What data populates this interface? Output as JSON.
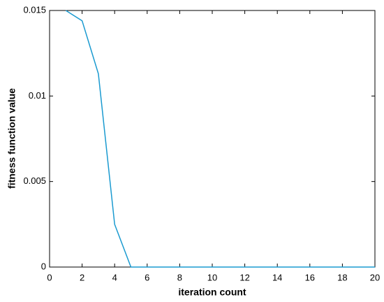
{
  "chart_data": {
    "type": "line",
    "x_label": "iteration count",
    "y_label": "fitness function value",
    "x": [
      1,
      2,
      3,
      4,
      5,
      6,
      7,
      8,
      9,
      10,
      11,
      12,
      13,
      14,
      15,
      16,
      17,
      18,
      19,
      20
    ],
    "values": [
      0.015,
      0.0144,
      0.0113,
      0.0025,
      0,
      0,
      0,
      0,
      0,
      0,
      0,
      0,
      0,
      0,
      0,
      0,
      0,
      0,
      0,
      0
    ],
    "color": "#1a9ad0",
    "xlim": [
      0,
      20
    ],
    "xticks": [
      0,
      2,
      4,
      6,
      8,
      10,
      12,
      14,
      16,
      18,
      20
    ],
    "ylim": [
      0,
      0.015
    ],
    "yticks": [
      0,
      0.005,
      0.01,
      0.015
    ]
  }
}
